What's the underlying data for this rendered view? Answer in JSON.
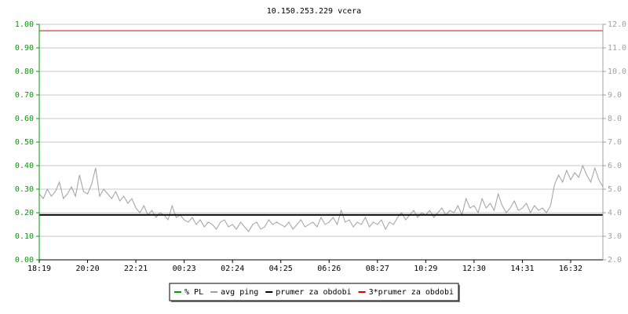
{
  "chart_data": {
    "type": "line",
    "title": "10.150.253.229 vcera",
    "categories": [
      "18:19",
      null,
      null,
      null,
      null,
      null,
      null,
      null,
      null,
      null,
      null,
      null,
      "20:20",
      null,
      null,
      null,
      null,
      null,
      null,
      null,
      null,
      null,
      null,
      null,
      "22:21",
      null,
      null,
      null,
      null,
      null,
      null,
      null,
      null,
      null,
      null,
      null,
      "00:23",
      null,
      null,
      null,
      null,
      null,
      null,
      null,
      null,
      null,
      null,
      null,
      "02:24",
      null,
      null,
      null,
      null,
      null,
      null,
      null,
      null,
      null,
      null,
      null,
      "04:25",
      null,
      null,
      null,
      null,
      null,
      null,
      null,
      null,
      null,
      null,
      null,
      "06:26",
      null,
      null,
      null,
      null,
      null,
      null,
      null,
      null,
      null,
      null,
      null,
      "08:27",
      null,
      null,
      null,
      null,
      null,
      null,
      null,
      null,
      null,
      null,
      null,
      "10:29",
      null,
      null,
      null,
      null,
      null,
      null,
      null,
      null,
      null,
      null,
      null,
      "12:30",
      null,
      null,
      null,
      null,
      null,
      null,
      null,
      null,
      null,
      null,
      null,
      "14:31",
      null,
      null,
      null,
      null,
      null,
      null,
      null,
      null,
      null,
      null,
      null,
      "16:32",
      null,
      null,
      null,
      null,
      null,
      null,
      null,
      null
    ],
    "series": [
      {
        "name": "% PL",
        "color": "#00a000",
        "values": [
          0,
          0,
          0,
          0,
          0,
          0,
          0,
          0,
          0,
          0,
          0,
          0,
          0,
          0,
          0,
          0,
          0,
          0,
          0,
          0,
          0,
          0,
          0,
          0,
          0,
          0,
          0,
          0,
          0,
          0,
          0,
          0,
          0,
          0,
          0,
          0,
          0,
          0,
          0,
          0,
          0,
          0,
          0,
          0,
          0,
          0,
          0,
          0,
          0,
          0,
          0,
          0,
          0,
          0,
          0,
          0,
          0,
          0,
          0,
          0,
          0,
          0,
          0,
          0,
          0,
          0,
          0,
          0,
          0,
          0,
          0,
          0,
          0,
          0,
          0,
          0,
          0,
          0,
          0,
          0,
          0,
          0,
          0,
          0,
          0,
          0,
          0,
          0,
          0,
          0,
          0,
          0,
          0,
          0,
          0,
          0,
          0,
          0,
          0,
          0,
          0,
          0,
          0,
          0,
          0,
          0,
          0,
          0,
          0,
          0,
          0,
          0,
          0,
          0,
          0,
          0,
          0,
          0,
          0,
          0,
          0,
          0,
          0,
          0,
          0,
          0,
          0,
          0,
          0,
          0,
          0,
          0,
          0,
          0,
          0,
          0,
          0,
          0,
          0,
          0,
          0
        ]
      },
      {
        "name": "avg ping",
        "color": "#a0a0a0",
        "axis": "y2",
        "values": [
          4.8,
          4.6,
          5.0,
          4.7,
          4.9,
          5.3,
          4.6,
          4.8,
          5.1,
          4.7,
          5.6,
          4.9,
          4.8,
          5.2,
          5.9,
          4.7,
          5.0,
          4.8,
          4.6,
          4.9,
          4.5,
          4.7,
          4.4,
          4.6,
          4.2,
          4.0,
          4.3,
          3.9,
          4.1,
          3.8,
          4.0,
          3.9,
          3.7,
          4.3,
          3.8,
          3.9,
          3.7,
          3.6,
          3.8,
          3.5,
          3.7,
          3.4,
          3.6,
          3.5,
          3.3,
          3.6,
          3.7,
          3.4,
          3.5,
          3.3,
          3.6,
          3.4,
          3.2,
          3.5,
          3.6,
          3.3,
          3.4,
          3.7,
          3.5,
          3.6,
          3.5,
          3.4,
          3.6,
          3.3,
          3.5,
          3.7,
          3.4,
          3.5,
          3.6,
          3.4,
          3.8,
          3.5,
          3.6,
          3.8,
          3.5,
          4.1,
          3.6,
          3.7,
          3.4,
          3.6,
          3.5,
          3.8,
          3.4,
          3.6,
          3.5,
          3.7,
          3.3,
          3.6,
          3.5,
          3.8,
          4.0,
          3.7,
          3.9,
          4.1,
          3.8,
          4.0,
          3.9,
          4.1,
          3.8,
          4.0,
          4.2,
          3.9,
          4.1,
          4.0,
          4.3,
          3.9,
          4.6,
          4.2,
          4.3,
          4.0,
          4.6,
          4.2,
          4.4,
          4.1,
          4.8,
          4.3,
          4.0,
          4.2,
          4.5,
          4.1,
          4.2,
          4.4,
          4.0,
          4.3,
          4.1,
          4.2,
          4.0,
          4.3,
          5.2,
          5.6,
          5.3,
          5.8,
          5.4,
          5.7,
          5.5,
          6.0,
          5.6,
          5.3,
          5.9,
          5.4,
          5.1
        ]
      }
    ],
    "reference_lines": [
      {
        "name": "prumer za obdobi",
        "color": "#000000",
        "axis": "y2",
        "value": 3.91
      },
      {
        "name": "3*prumer za obdobi",
        "color": "#e00000",
        "axis": "y2",
        "value": 11.73
      }
    ],
    "ylim": [
      0,
      1
    ],
    "y2lim": [
      2,
      12
    ],
    "yticks": [
      {
        "value": 0,
        "label": "0.00"
      },
      {
        "value": 0.1,
        "label": "0.10"
      },
      {
        "value": 0.2,
        "label": "0.20"
      },
      {
        "value": 0.3,
        "label": "0.30"
      },
      {
        "value": 0.4,
        "label": "0.40"
      },
      {
        "value": 0.5,
        "label": "0.50"
      },
      {
        "value": 0.6,
        "label": "0.60"
      },
      {
        "value": 0.7,
        "label": "0.70"
      },
      {
        "value": 0.8,
        "label": "0.80"
      },
      {
        "value": 0.9,
        "label": "0.90"
      },
      {
        "value": 1,
        "label": "1.00"
      }
    ],
    "y2ticks": [
      {
        "value": 2,
        "label": "2.0"
      },
      {
        "value": 3,
        "label": "3.0"
      },
      {
        "value": 4,
        "label": "4.0"
      },
      {
        "value": 5,
        "label": "5.0"
      },
      {
        "value": 6,
        "label": "6.0"
      },
      {
        "value": 7,
        "label": "7.0"
      },
      {
        "value": 8,
        "label": "8.0"
      },
      {
        "value": 9,
        "label": "9.0"
      },
      {
        "value": 10,
        "label": "10.0"
      },
      {
        "value": 11,
        "label": "11.0"
      },
      {
        "value": 12,
        "label": "12.0"
      }
    ],
    "grid": true,
    "legend": "bottom"
  }
}
